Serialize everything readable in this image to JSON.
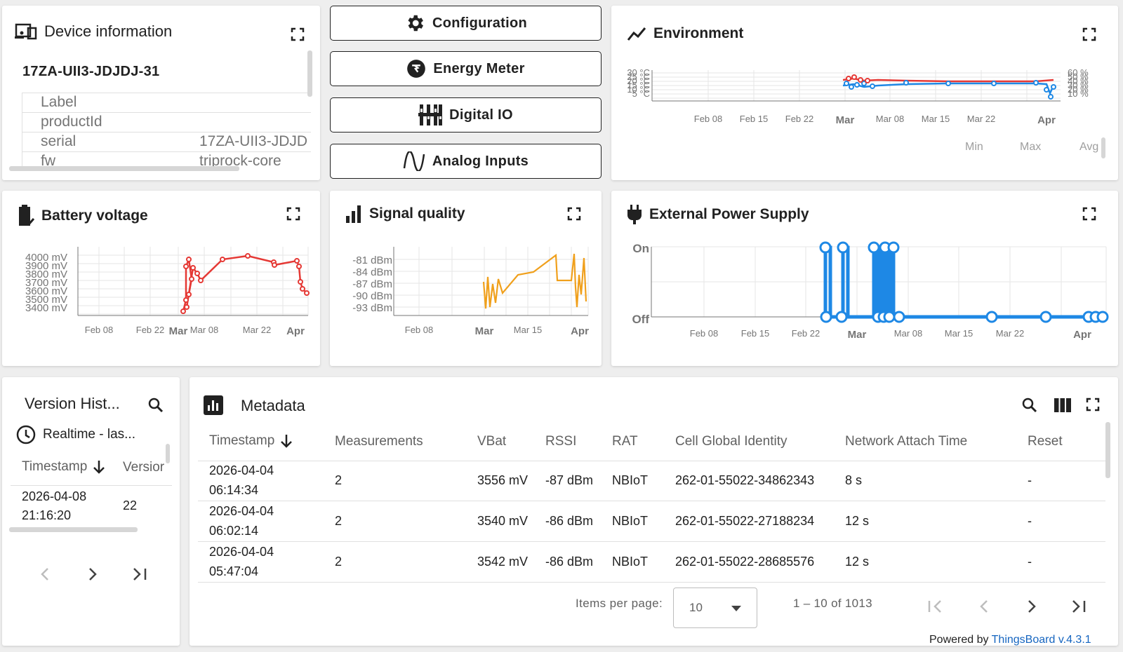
{
  "device_info": {
    "title": "Device information",
    "device_name": "17ZA-UII3-JDJDJ-31",
    "rows": [
      {
        "key": "Label",
        "value": ""
      },
      {
        "key": "productId",
        "value": ""
      },
      {
        "key": "serial",
        "value": "17ZA-UII3-JDJD"
      },
      {
        "key": "fw",
        "value": "triprock-core"
      }
    ]
  },
  "nav_buttons": {
    "configuration": "Configuration",
    "energy_meter": "Energy Meter",
    "digital_io": "Digital IO",
    "analog_inputs": "Analog Inputs"
  },
  "environment": {
    "title": "Environment",
    "left_ticks": [
      "30 °C",
      "25 °C",
      "20 °C",
      "15 °C",
      "10 °C",
      "5 °C"
    ],
    "right_ticks": [
      "60 %",
      "50 %",
      "40 %",
      "30 %",
      "20 %",
      "10 %"
    ],
    "x_ticks": [
      "Feb 08",
      "Feb 15",
      "Feb 22",
      "Mar",
      "Mar 08",
      "Mar 15",
      "Mar 22",
      "Apr"
    ],
    "stats_headers": [
      "Min",
      "Max",
      "Avg"
    ]
  },
  "battery": {
    "title": "Battery voltage",
    "y_ticks": [
      "4000 mV",
      "3900 mV",
      "3800 mV",
      "3700 mV",
      "3600 mV",
      "3500 mV",
      "3400 mV"
    ],
    "x_ticks": [
      "Feb 08",
      "Feb 22",
      "Mar",
      "Mar 08",
      "Mar 22",
      "Apr"
    ]
  },
  "signal": {
    "title": "Signal quality",
    "y_ticks": [
      "-81 dBm",
      "-84 dBm",
      "-87 dBm",
      "-90 dBm",
      "-93 dBm"
    ],
    "x_ticks": [
      "Feb 08",
      "Mar",
      "Mar 15",
      "Apr"
    ]
  },
  "power": {
    "title": "External Power Supply",
    "y_ticks": [
      "On",
      "Off"
    ],
    "x_ticks": [
      "Feb 08",
      "Feb 15",
      "Feb 22",
      "Mar",
      "Mar 08",
      "Mar 15",
      "Mar 22",
      "Apr"
    ]
  },
  "version_history": {
    "title": "Version Hist...",
    "realtime": "Realtime - las...",
    "col_timestamp": "Timestamp",
    "col_version": "Versior",
    "row": {
      "date": "2026-04-08",
      "time": "21:16:20",
      "version": "22"
    }
  },
  "metadata": {
    "title": "Metadata",
    "columns": [
      "Timestamp",
      "Measurements",
      "VBat",
      "RSSI",
      "RAT",
      "Cell Global Identity",
      "Network Attach Time",
      "Reset"
    ],
    "rows": [
      {
        "date": "2026-04-04",
        "time": "06:14:34",
        "measurements": "2",
        "vbat": "3556 mV",
        "rssi": "-87 dBm",
        "rat": "NBIoT",
        "cgi": "262-01-55022-34862343",
        "attach": "8 s",
        "reset": "-"
      },
      {
        "date": "2026-04-04",
        "time": "06:02:14",
        "measurements": "2",
        "vbat": "3540 mV",
        "rssi": "-86 dBm",
        "rat": "NBIoT",
        "cgi": "262-01-55022-27188234",
        "attach": "12 s",
        "reset": "-"
      },
      {
        "date": "2026-04-04",
        "time": "05:47:04",
        "measurements": "2",
        "vbat": "3542 mV",
        "rssi": "-86 dBm",
        "rat": "NBIoT",
        "cgi": "262-01-55022-28685576",
        "attach": "12 s",
        "reset": "-"
      }
    ],
    "items_per_page_label": "Items per page:",
    "items_per_page_value": "10",
    "range_label": "1 – 10 of 1013"
  },
  "footer": {
    "powered_by": "Powered by",
    "link": "ThingsBoard v.4.3.1"
  },
  "colors": {
    "battery": "#e53935",
    "signal": "#f0a01c",
    "power": "#1e88e5",
    "env_temp": "#e53935",
    "env_humidity": "#1e88e5",
    "link": "#1565c0"
  }
}
